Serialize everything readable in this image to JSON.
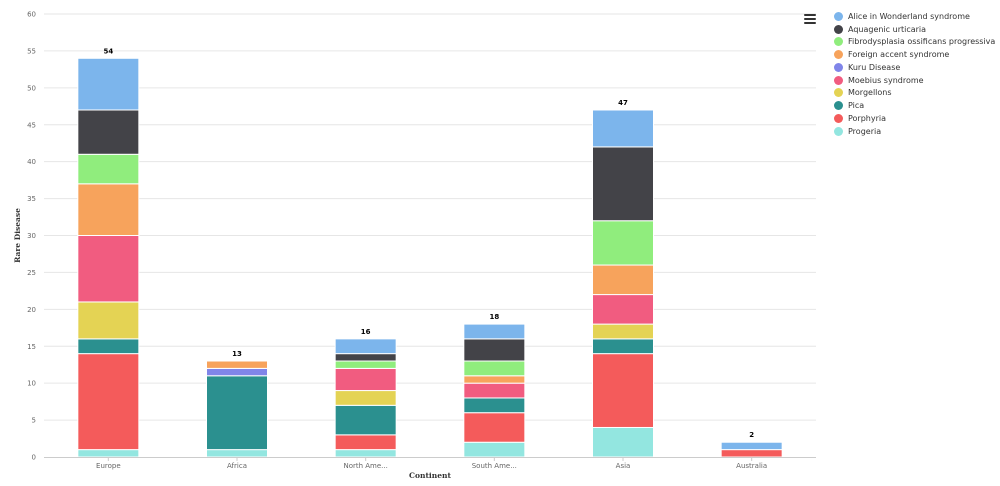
{
  "chart_data": {
    "type": "bar",
    "stacked": true,
    "xlabel": "Continent",
    "ylabel": "Rare Disease",
    "ylim": [
      0,
      60
    ],
    "yticks": [
      0,
      5,
      10,
      15,
      20,
      25,
      30,
      35,
      40,
      45,
      50,
      55,
      60
    ],
    "grid": true,
    "legend_position": "right",
    "categories": [
      "Europe",
      "Africa",
      "North Ame...",
      "South Ame...",
      "Asia",
      "Australia"
    ],
    "totals": [
      54,
      13,
      16,
      18,
      47,
      2
    ],
    "series": [
      {
        "name": "Progeria",
        "color": "#93e6e0",
        "values": [
          1,
          1,
          1,
          2,
          4,
          0
        ]
      },
      {
        "name": "Porphyria",
        "color": "#f45b5b",
        "values": [
          13,
          0,
          2,
          4,
          10,
          1
        ]
      },
      {
        "name": "Pica",
        "color": "#2b908f",
        "values": [
          2,
          10,
          4,
          2,
          2,
          0
        ]
      },
      {
        "name": "Morgellons",
        "color": "#e4d354",
        "values": [
          5,
          0,
          2,
          0,
          2,
          0
        ]
      },
      {
        "name": "Moebius syndrome",
        "color": "#f15c80",
        "values": [
          9,
          0,
          3,
          2,
          4,
          0
        ]
      },
      {
        "name": "Kuru Disease",
        "color": "#8085e9",
        "values": [
          0,
          1,
          0,
          0,
          0,
          0
        ]
      },
      {
        "name": "Foreign accent syndrome",
        "color": "#f7a35c",
        "values": [
          7,
          1,
          0,
          1,
          4,
          0
        ]
      },
      {
        "name": "Fibrodysplasia ossificans progressiva",
        "color": "#90ed7d",
        "values": [
          4,
          0,
          1,
          2,
          6,
          0
        ]
      },
      {
        "name": "Aquagenic urticaria",
        "color": "#434348",
        "values": [
          6,
          0,
          1,
          3,
          10,
          0
        ]
      },
      {
        "name": "Alice in Wonderland syndrome",
        "color": "#7cb5ec",
        "values": [
          7,
          0,
          2,
          2,
          5,
          1
        ]
      }
    ],
    "legend_order": [
      "Alice in Wonderland syndrome",
      "Aquagenic urticaria",
      "Fibrodysplasia ossificans progressiva",
      "Foreign accent syndrome",
      "Kuru Disease",
      "Moebius syndrome",
      "Morgellons",
      "Pica",
      "Porphyria",
      "Progeria"
    ]
  },
  "menu": {
    "icon": "hamburger-menu-icon"
  }
}
